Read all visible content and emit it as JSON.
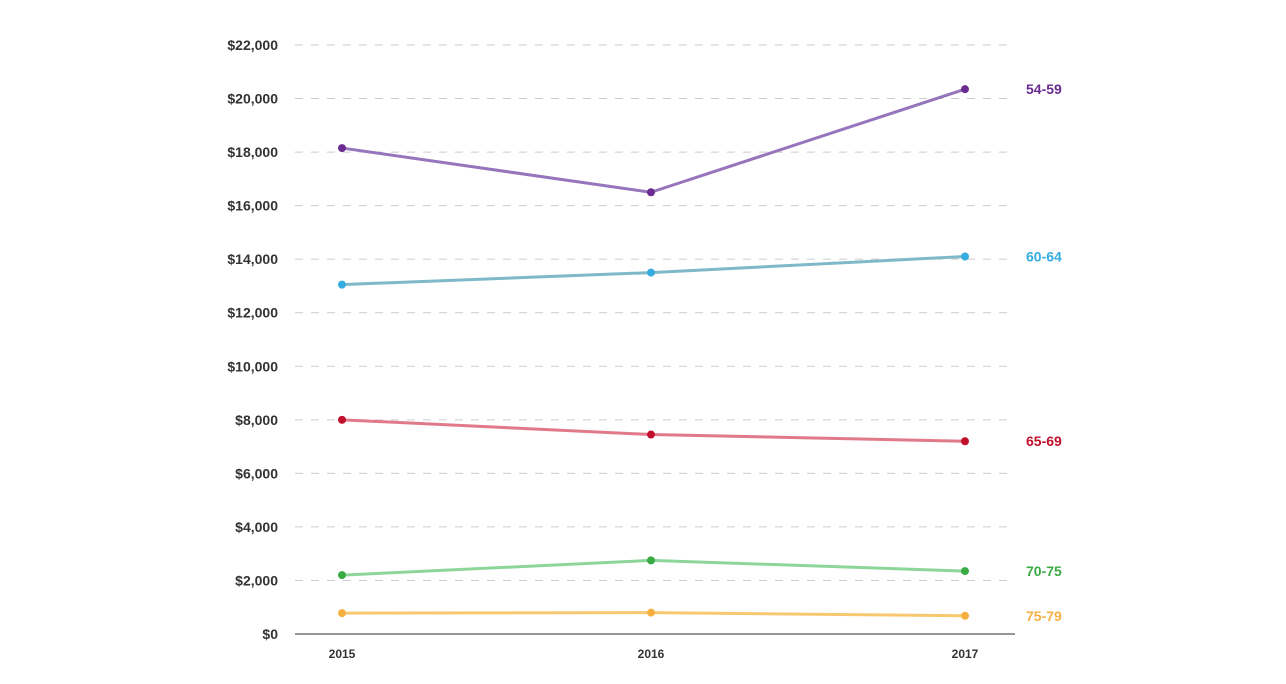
{
  "chart_data": {
    "type": "line",
    "title": "",
    "xlabel": "",
    "ylabel": "",
    "categories": [
      "2015",
      "2016",
      "2017"
    ],
    "ylim": [
      0,
      22000
    ],
    "yticks": [
      0,
      2000,
      4000,
      6000,
      8000,
      10000,
      12000,
      14000,
      16000,
      18000,
      20000,
      22000
    ],
    "ytick_labels": [
      "$0",
      "$2,000",
      "$4,000",
      "$6,000",
      "$8,000",
      "$10,000",
      "$12,000",
      "$14,000",
      "$16,000",
      "$18,000",
      "$20,000",
      "$22,000"
    ],
    "grid": "horizontal dashed",
    "legend": "labels at right end of each line",
    "series": [
      {
        "name": "54-59",
        "values": [
          18150,
          16500,
          20350
        ],
        "line_color": "#9675bd",
        "marker_color": "#6a2c91",
        "label_color": "#6a2c91"
      },
      {
        "name": "60-64",
        "values": [
          13050,
          13500,
          14100
        ],
        "line_color": "#7fb8c9",
        "marker_color": "#35ace0",
        "label_color": "#35ace0"
      },
      {
        "name": "65-69",
        "values": [
          8000,
          7450,
          7200
        ],
        "line_color": "#e07a8a",
        "marker_color": "#c0102b",
        "label_color": "#c0102b"
      },
      {
        "name": "70-75",
        "values": [
          2200,
          2750,
          2350
        ],
        "line_color": "#8dd69a",
        "marker_color": "#3aaa45",
        "label_color": "#3aaa45"
      },
      {
        "name": "75-79",
        "values": [
          780,
          800,
          680
        ],
        "line_color": "#f8c870",
        "marker_color": "#f5b040",
        "label_color": "#f5b040"
      }
    ]
  }
}
